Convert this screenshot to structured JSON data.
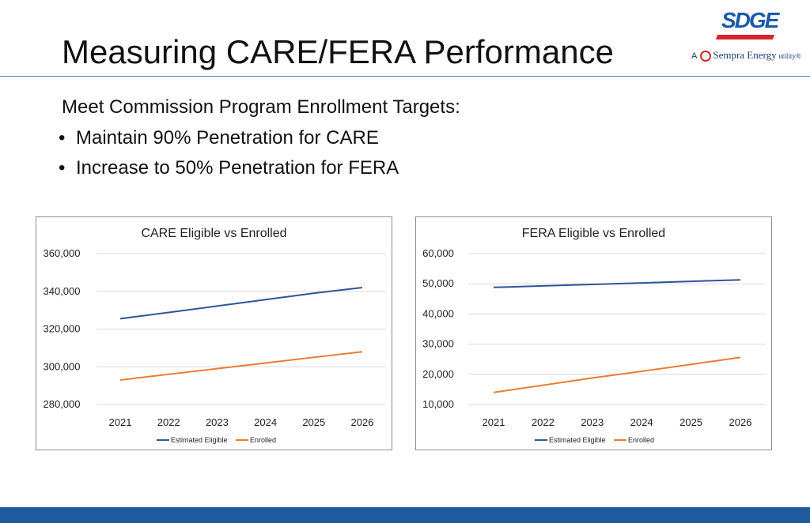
{
  "slide": {
    "title": "Measuring CARE/FERA Performance",
    "intro": "Meet Commission Program Enrollment Targets:",
    "bullets": [
      "Maintain 90% Penetration for CARE",
      "Increase to 50% Penetration for FERA"
    ]
  },
  "logo": {
    "brand": "SDGE",
    "prefix": "A",
    "company": "Sempra Energy",
    "suffix": "utility®"
  },
  "colors": {
    "estimated_eligible": "#2e5597",
    "enrolled": "#ed7d31",
    "gridline": "#d9d9d9",
    "footer": "#1d5a9e"
  },
  "chart_data": [
    {
      "type": "line",
      "title": "CARE Eligible vs Enrolled",
      "categories": [
        "2021",
        "2022",
        "2023",
        "2024",
        "2025",
        "2026"
      ],
      "ylim": [
        280000,
        360000
      ],
      "yticks": [
        "360,000",
        "340,000",
        "320,000",
        "300,000",
        "280,000"
      ],
      "ytick_values": [
        360000,
        340000,
        320000,
        300000,
        280000
      ],
      "grid": true,
      "legend_position": "bottom",
      "series": [
        {
          "name": "Estimated Eligible",
          "values": [
            325500,
            328800,
            332200,
            335600,
            339000,
            342000
          ]
        },
        {
          "name": "Enrolled",
          "values": [
            293000,
            296000,
            299000,
            302000,
            305000,
            308000
          ]
        }
      ]
    },
    {
      "type": "line",
      "title": "FERA Eligible vs Enrolled",
      "categories": [
        "2021",
        "2022",
        "2023",
        "2024",
        "2025",
        "2026"
      ],
      "ylim": [
        10000,
        60000
      ],
      "yticks": [
        "60,000",
        "50,000",
        "40,000",
        "30,000",
        "20,000",
        "10,000"
      ],
      "ytick_values": [
        60000,
        50000,
        40000,
        30000,
        20000,
        10000
      ],
      "grid": true,
      "legend_position": "bottom",
      "series": [
        {
          "name": "Estimated Eligible",
          "values": [
            48800,
            49300,
            49800,
            50300,
            50800,
            51300
          ]
        },
        {
          "name": "Enrolled",
          "values": [
            14000,
            16400,
            18800,
            21000,
            23300,
            25600
          ]
        }
      ]
    }
  ]
}
